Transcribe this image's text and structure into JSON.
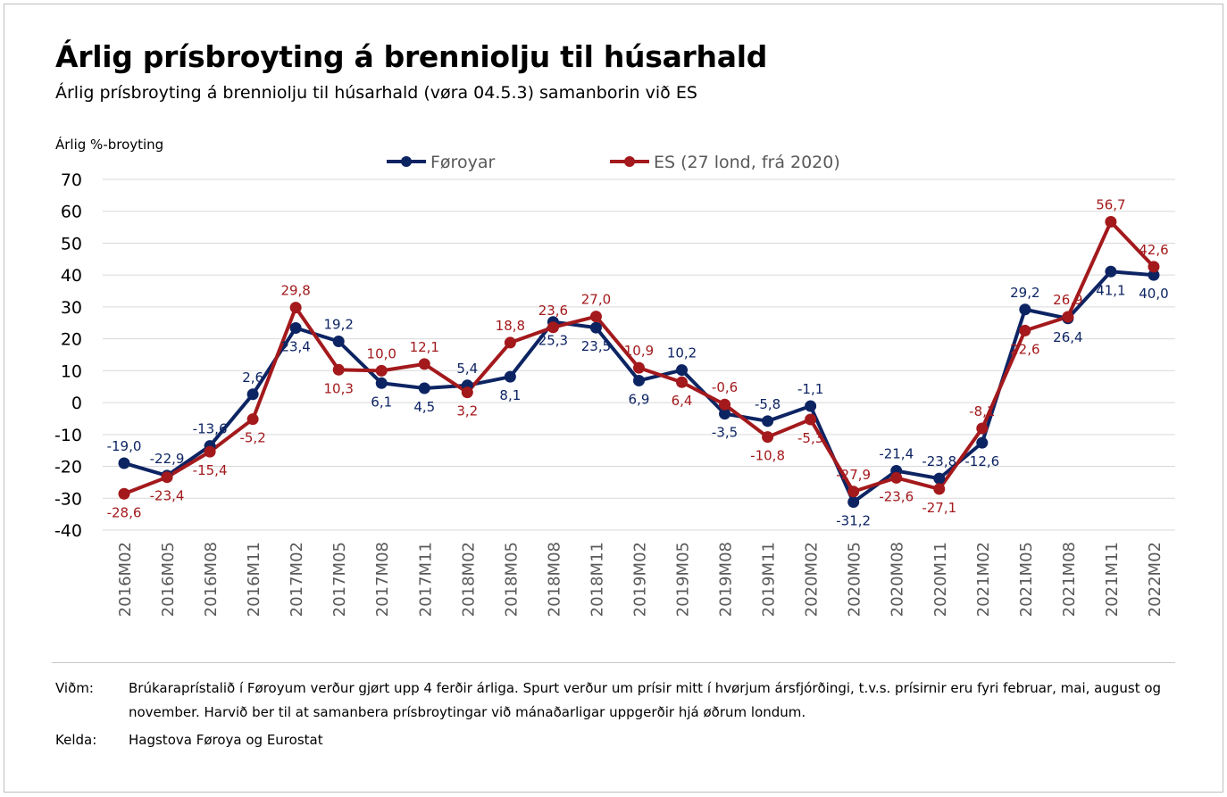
{
  "title": "Árlig prísbroyting á brenniolju til húsarhald",
  "subtitle": "Árlig prísbroyting á brenniolju til húsarhald (vøra 04.5.3) samanborin við ES",
  "notes": {
    "note_label": "Viðm:",
    "note_text": "Brúkaraprístalið í Føroyum verður gjørt upp 4 ferðir árliga. Spurt verður um prísir mitt í hvørjum ársfjórðingi, t.v.s. prísirnir eru fyri februar, mai, august og november. Harvið ber til at samanbera prísbroytingar við mánaðarligar uppgerðir hjá øðrum londum.",
    "source_label": "Kelda:",
    "source_text": "Hagstova Føroya og Eurostat"
  },
  "chart_data": {
    "type": "line",
    "title": "Árlig prísbroyting á brenniolju til húsarhald",
    "ylabel": "Árlig %-broyting",
    "xlabel": "",
    "ylim": [
      -40,
      70
    ],
    "yticks": [
      70,
      60,
      50,
      40,
      30,
      20,
      10,
      0,
      -10,
      -20,
      -30,
      -40
    ],
    "grid": true,
    "legend_position": "top-center",
    "categories": [
      "2016M02",
      "2016M05",
      "2016M08",
      "2016M11",
      "2017M02",
      "2017M05",
      "2017M08",
      "2017M11",
      "2018M02",
      "2018M05",
      "2018M08",
      "2018M11",
      "2019M02",
      "2019M05",
      "2019M08",
      "2019M11",
      "2020M02",
      "2020M05",
      "2020M08",
      "2020M11",
      "2021M02",
      "2021M05",
      "2021M08",
      "2021M11",
      "2022M02"
    ],
    "series": [
      {
        "name": "Føroyar",
        "color": "#0d2463",
        "values": [
          -19.0,
          -22.9,
          -13.6,
          2.6,
          23.4,
          19.2,
          6.1,
          4.5,
          5.4,
          8.1,
          25.3,
          23.5,
          6.9,
          10.2,
          -3.5,
          -5.8,
          -1.1,
          -31.2,
          -21.4,
          -23.8,
          -12.6,
          29.2,
          26.4,
          41.1,
          40.0
        ],
        "labels": [
          "-19,0",
          "-22,9",
          "-13,6",
          "2,6",
          "23,4",
          "19,2",
          "6,1",
          "4,5",
          "5,4",
          "8,1",
          "25,3",
          "23,5",
          "6,9",
          "10,2",
          "-3,5",
          "-5,8",
          "-1,1",
          "-31,2",
          "-21,4",
          "-23,8",
          "-12,6",
          "29,2",
          "26,4",
          "41,1",
          "40,0"
        ]
      },
      {
        "name": "ES (27 lond, frá 2020)",
        "color": "#a3191c",
        "values": [
          -28.6,
          -23.4,
          -15.4,
          -5.2,
          29.8,
          10.3,
          10.0,
          12.1,
          3.2,
          18.8,
          23.6,
          27.0,
          10.9,
          6.4,
          -0.6,
          -10.8,
          -5.3,
          -27.9,
          -23.6,
          -27.1,
          -8.1,
          22.6,
          26.9,
          56.7,
          42.6
        ],
        "labels": [
          "-28,6",
          "-23,4",
          "-15,4",
          "-5,2",
          "29,8",
          "10,3",
          "10,0",
          "12,1",
          "3,2",
          "18,8",
          "23,6",
          "27,0",
          "10,9",
          "6,4",
          "-0,6",
          "-10,8",
          "-5,3",
          "-27,9",
          "-23,6",
          "-27,1",
          "-8,1",
          "22,6",
          "26,9",
          "56,7",
          "42,6"
        ]
      }
    ]
  }
}
